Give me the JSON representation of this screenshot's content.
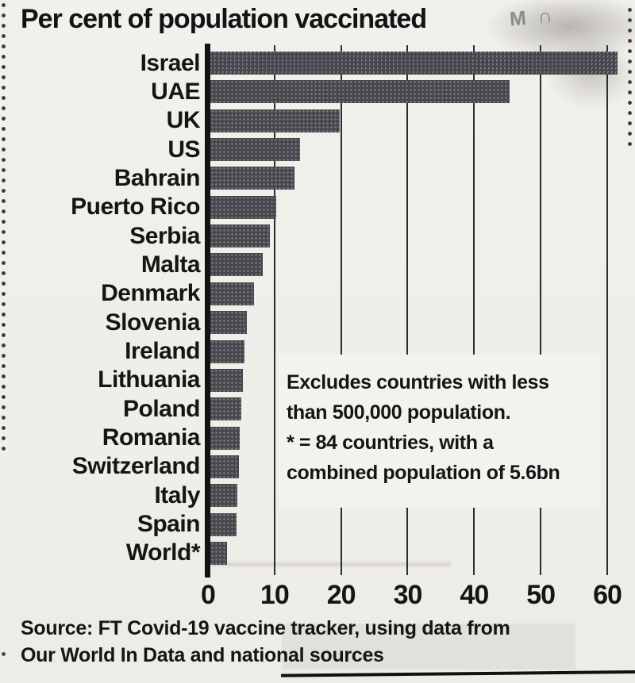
{
  "chart_data": {
    "type": "bar",
    "orientation": "horizontal",
    "title": "Per cent of population vaccinated",
    "categories": [
      "Israel",
      "UAE",
      "UK",
      "US",
      "Bahrain",
      "Puerto Rico",
      "Serbia",
      "Malta",
      "Denmark",
      "Slovenia",
      "Ireland",
      "Lithuania",
      "Poland",
      "Romania",
      "Switzerland",
      "Italy",
      "Spain",
      "World*"
    ],
    "values": [
      61.6,
      45.3,
      19.8,
      13.8,
      13.0,
      10.3,
      9.3,
      8.2,
      6.9,
      5.9,
      5.5,
      5.2,
      5.0,
      4.8,
      4.6,
      4.4,
      4.3,
      2.9
    ],
    "x_ticks": [
      0,
      10,
      20,
      30,
      40,
      50,
      60
    ],
    "xlim": [
      0,
      60
    ],
    "grid": "vertical gridlines, full height; no horizontal baseline",
    "legend": "none",
    "bar_color": "#46464d",
    "units": "per cent of population"
  },
  "annotation": {
    "lines": [
      "Excludes countries with less",
      "than 500,000 population.",
      "* = 84 countries, with a",
      "combined population of 5.6bn"
    ]
  },
  "source": {
    "line1": "Source: FT Covid-19 vaccine tracker, using data from",
    "line2": "Our World In Data and national sources"
  },
  "scan_artifact_text": "M ∩"
}
